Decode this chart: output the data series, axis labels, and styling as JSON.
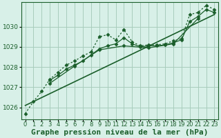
{
  "background_color": "#d8f0e8",
  "grid_color": "#a8ccbc",
  "line_color": "#1a5e2a",
  "marker_color": "#1a5e2a",
  "xlabel": "Graphe pression niveau de la mer (hPa)",
  "xlabel_fontsize": 8,
  "tick_fontsize": 6.5,
  "xlim": [
    -0.5,
    23.5
  ],
  "ylim": [
    1025.4,
    1031.2
  ],
  "yticks": [
    1026,
    1027,
    1028,
    1029,
    1030
  ],
  "xticks": [
    0,
    1,
    2,
    3,
    4,
    5,
    6,
    7,
    8,
    9,
    10,
    11,
    12,
    13,
    14,
    15,
    16,
    17,
    18,
    19,
    20,
    21,
    22,
    23
  ],
  "series": [
    {
      "x": [
        0,
        1,
        2,
        3,
        4,
        5,
        6,
        7,
        8,
        9,
        10,
        11,
        12,
        13,
        14,
        15,
        16,
        17,
        18,
        19,
        20,
        21,
        22,
        23
      ],
      "y": [
        1025.7,
        1026.3,
        1026.8,
        1027.4,
        1027.75,
        1028.1,
        1028.3,
        1028.55,
        1028.75,
        1029.5,
        1029.6,
        1029.35,
        1029.85,
        1029.25,
        1029.05,
        1029.1,
        1029.1,
        1029.15,
        1029.3,
        1029.4,
        1030.6,
        1030.7,
        1031.05,
        1030.85
      ],
      "style": "dotted",
      "marker": "D",
      "markersize": 2.5,
      "linewidth": 0.9
    },
    {
      "x": [
        3,
        4,
        5,
        6,
        7,
        8,
        9,
        10,
        11,
        12,
        13,
        14,
        15,
        16,
        17,
        18,
        19,
        20,
        21,
        22,
        23
      ],
      "y": [
        1027.35,
        1027.6,
        1027.9,
        1028.1,
        1028.3,
        1028.6,
        1028.9,
        1029.05,
        1029.15,
        1029.45,
        1029.15,
        1029.0,
        1029.05,
        1029.05,
        1029.1,
        1029.2,
        1029.35,
        1030.25,
        1030.5,
        1030.85,
        1030.7
      ],
      "style": "solid",
      "marker": "D",
      "markersize": 2.5,
      "linewidth": 0.9
    },
    {
      "x": [
        3,
        6,
        9,
        12,
        15,
        18,
        21
      ],
      "y": [
        1027.2,
        1028.05,
        1028.85,
        1029.05,
        1028.95,
        1029.15,
        1030.4
      ],
      "style": "solid",
      "marker": "D",
      "markersize": 2.5,
      "linewidth": 0.9
    },
    {
      "x": [
        0,
        23
      ],
      "y": [
        1026.1,
        1030.6
      ],
      "style": "solid",
      "marker": null,
      "markersize": 0,
      "linewidth": 1.2
    }
  ]
}
